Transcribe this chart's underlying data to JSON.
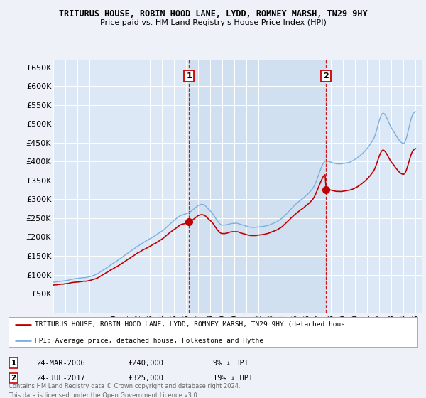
{
  "title": "TRITURUS HOUSE, ROBIN HOOD LANE, LYDD, ROMNEY MARSH, TN29 9HY",
  "subtitle": "Price paid vs. HM Land Registry's House Price Index (HPI)",
  "bg_color": "#eef2f8",
  "plot_bg_color": "#dce8f5",
  "shade_color": "#cdddf0",
  "ylim": [
    0,
    670000
  ],
  "yticks": [
    50000,
    100000,
    150000,
    200000,
    250000,
    300000,
    350000,
    400000,
    450000,
    500000,
    550000,
    600000,
    650000
  ],
  "ytick_labels": [
    "£50K",
    "£100K",
    "£150K",
    "£200K",
    "£250K",
    "£300K",
    "£350K",
    "£400K",
    "£450K",
    "£500K",
    "£550K",
    "£600K",
    "£650K"
  ],
  "sale1_date": 2006.23,
  "sale1_price": 240000,
  "sale1_label": "1",
  "sale2_date": 2017.57,
  "sale2_price": 325000,
  "sale2_label": "2",
  "legend_red_label": "TRITURUS HOUSE, ROBIN HOOD LANE, LYDD, ROMNEY MARSH, TN29 9HY (detached hous",
  "legend_blue_label": "HPI: Average price, detached house, Folkestone and Hythe",
  "table_row1": [
    "1",
    "24-MAR-2006",
    "£240,000",
    "9% ↓ HPI"
  ],
  "table_row2": [
    "2",
    "24-JUL-2017",
    "£325,000",
    "19% ↓ HPI"
  ],
  "footer": "Contains HM Land Registry data © Crown copyright and database right 2024.\nThis data is licensed under the Open Government Licence v3.0.",
  "hpi_color": "#7ab0e0",
  "price_color": "#c00000",
  "vline_color": "#cc0000",
  "grid_color": "#c8d8e8",
  "plot_outline_color": "#b0c0d0"
}
